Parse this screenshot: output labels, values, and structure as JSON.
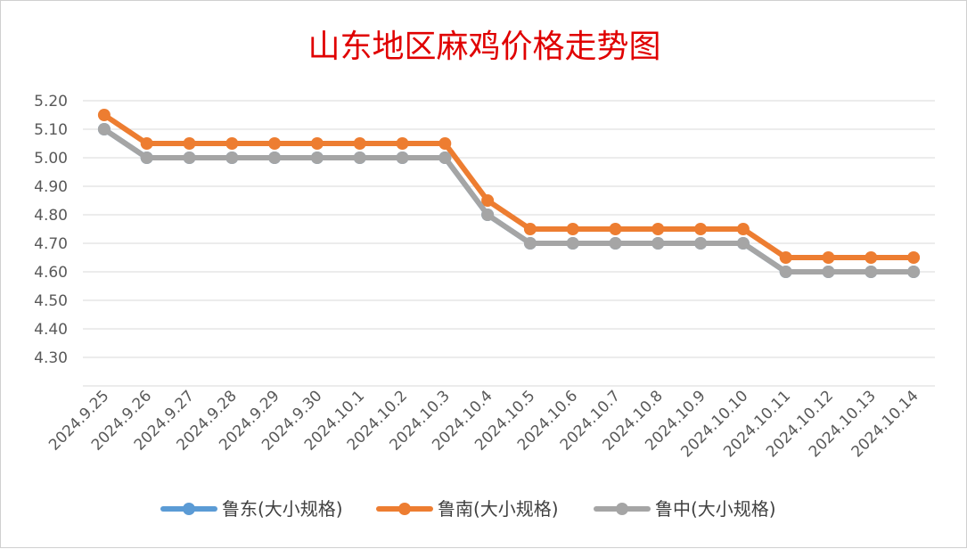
{
  "chart_data": {
    "type": "line",
    "title": "山东地区麻鸡价格走势图",
    "xlabel": "",
    "ylabel": "",
    "categories": [
      "2024.9.25",
      "2024.9.26",
      "2024.9.27",
      "2024.9.28",
      "2024.9.29",
      "2024.9.30",
      "2024.10.1",
      "2024.10.2",
      "2024.10.3",
      "2024.10.4",
      "2024.10.5",
      "2024.10.6",
      "2024.10.7",
      "2024.10.8",
      "2024.10.9",
      "2024.10.10",
      "2024.10.11",
      "2024.10.12",
      "2024.10.13",
      "2024.10.14"
    ],
    "y_ticks": [
      "4.30",
      "4.40",
      "4.50",
      "4.60",
      "4.70",
      "4.80",
      "4.90",
      "5.00",
      "5.10",
      "5.20"
    ],
    "ylim": [
      4.2,
      5.2
    ],
    "grid": true,
    "legend_position": "bottom",
    "series": [
      {
        "name": "鲁东(大小规格)",
        "color": "#5b9bd5",
        "values": [
          5.1,
          5.0,
          5.0,
          5.0,
          5.0,
          5.0,
          5.0,
          5.0,
          5.0,
          4.8,
          4.7,
          4.7,
          4.7,
          4.7,
          4.7,
          4.7,
          4.6,
          4.6,
          4.6,
          4.6
        ]
      },
      {
        "name": "鲁南(大小规格)",
        "color": "#ed7d31",
        "values": [
          5.15,
          5.05,
          5.05,
          5.05,
          5.05,
          5.05,
          5.05,
          5.05,
          5.05,
          4.85,
          4.75,
          4.75,
          4.75,
          4.75,
          4.75,
          4.75,
          4.65,
          4.65,
          4.65,
          4.65
        ]
      },
      {
        "name": "鲁中(大小规格)",
        "color": "#a5a5a5",
        "values": [
          5.1,
          5.0,
          5.0,
          5.0,
          5.0,
          5.0,
          5.0,
          5.0,
          5.0,
          4.8,
          4.7,
          4.7,
          4.7,
          4.7,
          4.7,
          4.7,
          4.6,
          4.6,
          4.6,
          4.6
        ]
      }
    ]
  }
}
